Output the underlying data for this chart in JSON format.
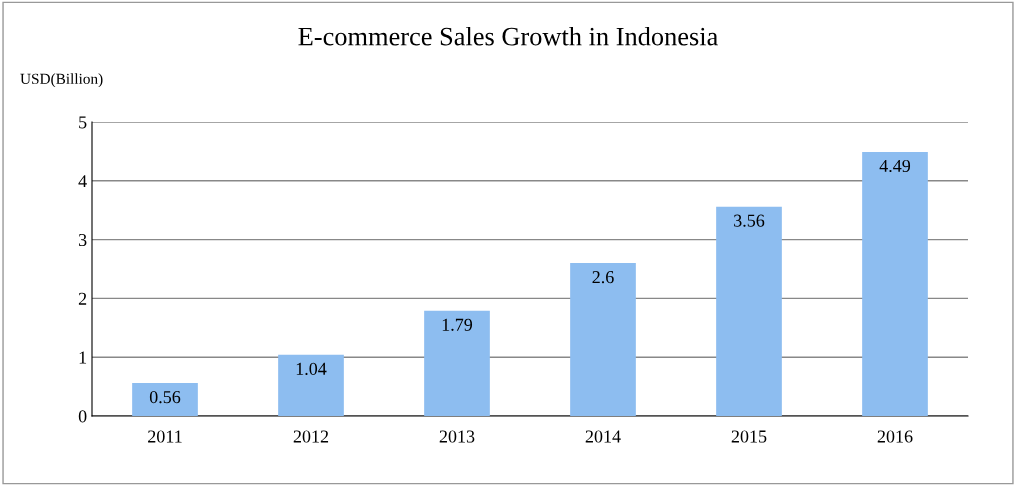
{
  "chart_data": {
    "type": "bar",
    "title": "E-commerce Sales Growth in Indonesia",
    "ylabel": "USD(Billion)",
    "categories": [
      "2011",
      "2012",
      "2013",
      "2014",
      "2015",
      "2016"
    ],
    "values": [
      0.56,
      1.04,
      1.79,
      2.6,
      3.56,
      4.49
    ],
    "color": "#8dbdf0",
    "ylim": [
      0,
      5
    ],
    "yticks": [
      0,
      1,
      2,
      3,
      4,
      5
    ],
    "grid": "y",
    "data_labels": true,
    "legend": false
  }
}
